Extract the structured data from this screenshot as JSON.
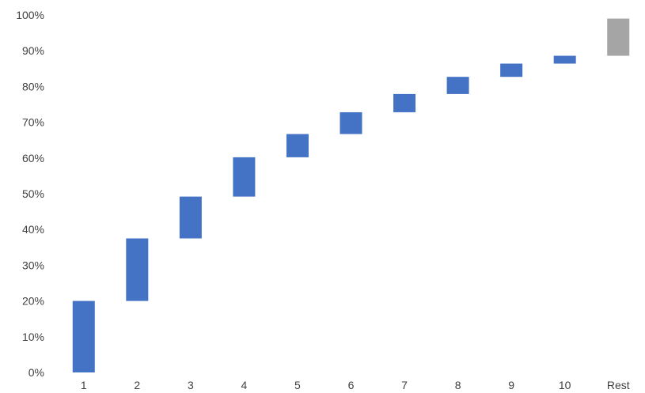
{
  "chart_data": {
    "type": "bar",
    "subtype": "waterfall",
    "title": "",
    "xlabel": "",
    "ylabel": "",
    "ylim": [
      0,
      100
    ],
    "grid": false,
    "legend": "none",
    "categories": [
      "1",
      "2",
      "3",
      "4",
      "5",
      "6",
      "7",
      "8",
      "9",
      "10",
      "Rest"
    ],
    "increments": [
      20.0,
      17.5,
      11.7,
      11.0,
      6.5,
      6.1,
      5.1,
      4.8,
      3.7,
      2.2,
      10.4
    ],
    "cumulative": [
      20.0,
      37.5,
      49.2,
      60.2,
      66.7,
      72.8,
      77.9,
      82.7,
      86.4,
      88.6,
      99.0
    ],
    "y_ticks": [
      "0%",
      "10%",
      "20%",
      "30%",
      "40%",
      "50%",
      "60%",
      "70%",
      "80%",
      "90%",
      "100%"
    ],
    "bar_colors": [
      "#4472c4",
      "#4472c4",
      "#4472c4",
      "#4472c4",
      "#4472c4",
      "#4472c4",
      "#4472c4",
      "#4472c4",
      "#4472c4",
      "#4472c4",
      "#a5a5a5"
    ]
  }
}
